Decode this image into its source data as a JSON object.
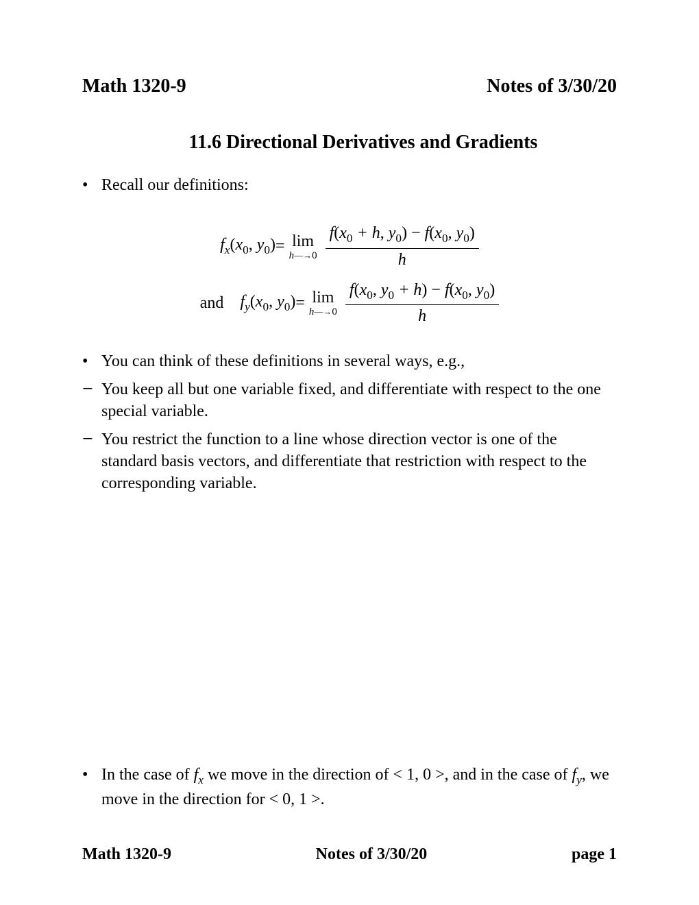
{
  "header": {
    "left": "Math 1320-9",
    "right": "Notes of 3/30/20"
  },
  "section_title": "11.6 Directional Derivatives and Gradients",
  "items": {
    "recall": "Recall our definitions:",
    "think": "You can think of these definitions in several ways, e.g.,",
    "dash1": "You keep all but one variable fixed, and differentiate with respect to the one special variable.",
    "dash2": "You restrict the function to a line whose direction vector is one of the standard basis vectors, and differentiate that restriction with respect to the corresponding variable."
  },
  "math": {
    "and_label": "and",
    "fx_lhs_func": "f",
    "fx_lhs_sub": "x",
    "fy_lhs_sub": "y",
    "arg_x0": "x",
    "arg_y0": "y",
    "arg_zero": "0",
    "eq": " = ",
    "lim_label": "lim",
    "lim_sub": "h→0",
    "h": "h",
    "plus_h": " + h",
    "minus": " − ",
    "open": "(",
    "close": ")",
    "comma": ", "
  },
  "bottom": {
    "text_a": "In the case of ",
    "fx": "f",
    "fx_sub": "x",
    "text_b": " we move in the direction of < 1, 0 >, and in the case of ",
    "fy": "f",
    "fy_sub": "y",
    "text_c": ", we move in the direction for < 0, 1 >."
  },
  "footer": {
    "left": "Math 1320-9",
    "center": "Notes of 3/30/20",
    "right": "page 1"
  }
}
